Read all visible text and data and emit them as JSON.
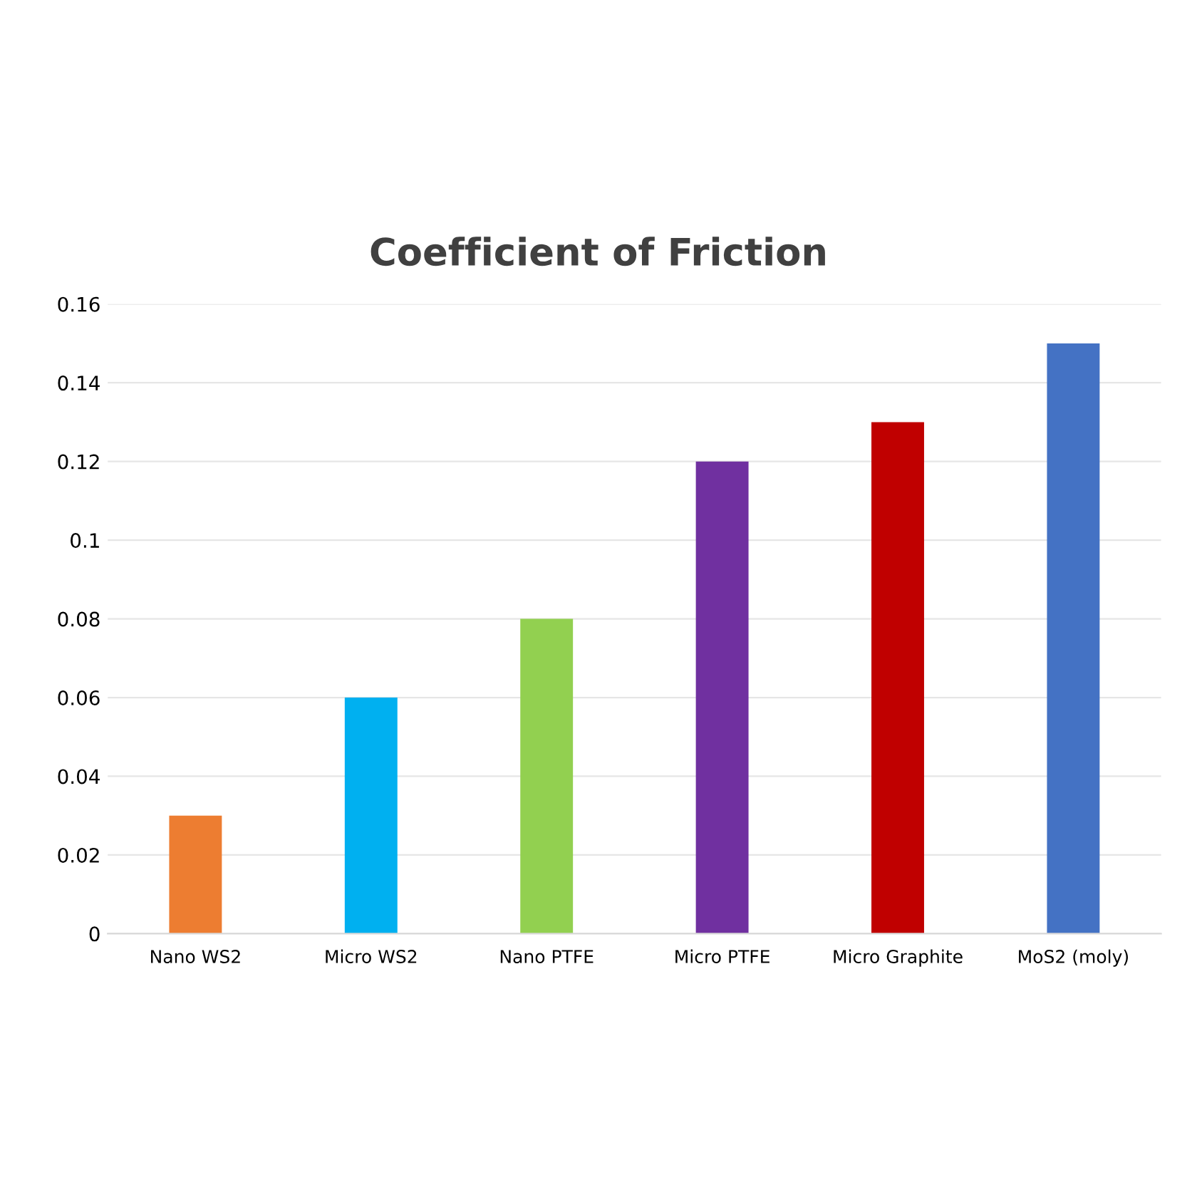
{
  "chart_data": {
    "type": "bar",
    "title": "Coefficient of Friction",
    "categories": [
      "Nano WS2",
      "Micro WS2",
      "Nano PTFE",
      "Micro PTFE",
      "Micro Graphite",
      "MoS2 (moly)"
    ],
    "values": [
      0.03,
      0.06,
      0.08,
      0.12,
      0.13,
      0.15
    ],
    "colors": [
      "#ed7d31",
      "#00b0f0",
      "#92d050",
      "#7030a0",
      "#c00000",
      "#4472c4"
    ],
    "ylim": [
      0,
      0.16
    ],
    "yticks": [
      0,
      0.02,
      0.04,
      0.06,
      0.08,
      0.1,
      0.12,
      0.14,
      0.16
    ],
    "grid": "y"
  }
}
